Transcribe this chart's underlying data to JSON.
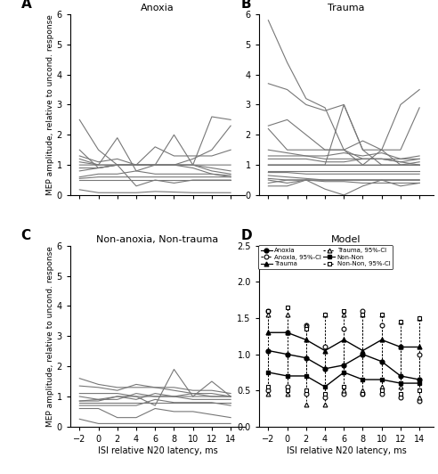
{
  "x": [
    -2,
    0,
    2,
    4,
    6,
    8,
    10,
    12,
    14
  ],
  "anoxia_curves": [
    [
      2.5,
      1.5,
      1.0,
      1.0,
      1.0,
      1.0,
      1.2,
      1.5,
      2.3
    ],
    [
      1.2,
      1.0,
      1.9,
      0.8,
      1.0,
      1.0,
      1.0,
      1.0,
      1.0
    ],
    [
      1.1,
      1.0,
      1.0,
      1.0,
      1.0,
      2.0,
      1.0,
      2.6,
      2.5
    ],
    [
      1.3,
      1.1,
      1.2,
      1.0,
      1.6,
      1.3,
      1.3,
      1.3,
      1.5
    ],
    [
      1.0,
      1.0,
      1.0,
      1.0,
      1.0,
      1.0,
      1.0,
      0.9,
      0.8
    ],
    [
      0.9,
      0.9,
      1.0,
      1.0,
      1.0,
      1.0,
      1.0,
      0.8,
      0.7
    ],
    [
      0.8,
      0.9,
      1.0,
      1.0,
      1.0,
      1.0,
      0.9,
      0.7,
      0.6
    ],
    [
      0.6,
      0.7,
      0.7,
      0.8,
      0.7,
      0.7,
      0.7,
      0.7,
      0.65
    ],
    [
      0.55,
      0.6,
      0.6,
      0.6,
      0.6,
      0.6,
      0.6,
      0.6,
      0.6
    ],
    [
      0.5,
      0.5,
      0.5,
      0.5,
      0.5,
      0.5,
      0.5,
      0.5,
      0.5
    ],
    [
      1.5,
      0.9,
      1.0,
      0.3,
      0.5,
      0.4,
      0.5,
      0.5,
      0.5
    ],
    [
      0.18,
      0.08,
      0.08,
      0.08,
      0.12,
      0.1,
      0.08,
      0.08,
      0.08
    ]
  ],
  "trauma_curves": [
    [
      5.8,
      4.4,
      3.2,
      2.9,
      1.5,
      1.0,
      1.0,
      1.0,
      1.1
    ],
    [
      3.7,
      3.5,
      3.0,
      2.8,
      3.0,
      1.5,
      1.5,
      1.0,
      1.0
    ],
    [
      2.3,
      2.5,
      2.0,
      1.5,
      1.5,
      1.2,
      1.2,
      1.2,
      1.2
    ],
    [
      2.2,
      1.5,
      1.5,
      1.5,
      1.5,
      1.8,
      1.5,
      3.0,
      3.5
    ],
    [
      1.5,
      1.4,
      1.3,
      1.2,
      1.2,
      1.2,
      1.2,
      1.1,
      1.0
    ],
    [
      1.3,
      1.3,
      1.3,
      1.3,
      1.4,
      1.3,
      1.4,
      1.2,
      1.3
    ],
    [
      1.2,
      1.2,
      1.2,
      1.1,
      1.1,
      1.2,
      1.2,
      1.1,
      1.2
    ],
    [
      1.0,
      1.0,
      1.0,
      1.0,
      3.0,
      1.5,
      1.0,
      1.0,
      1.0
    ],
    [
      1.0,
      1.0,
      1.0,
      1.0,
      1.0,
      1.0,
      1.5,
      1.5,
      2.9
    ],
    [
      1.0,
      1.0,
      1.0,
      1.0,
      1.0,
      1.0,
      1.0,
      1.0,
      1.0
    ],
    [
      0.8,
      0.8,
      0.8,
      0.8,
      0.8,
      0.8,
      0.8,
      0.8,
      0.8
    ],
    [
      0.75,
      0.75,
      0.7,
      0.7,
      0.7,
      0.7,
      0.7,
      0.7,
      0.7
    ],
    [
      0.65,
      0.6,
      0.55,
      0.5,
      0.5,
      0.5,
      0.5,
      0.5,
      0.5
    ],
    [
      0.55,
      0.5,
      0.5,
      0.45,
      0.45,
      0.4,
      0.4,
      0.4,
      0.4
    ],
    [
      0.5,
      0.4,
      0.5,
      0.2,
      0.0,
      0.3,
      0.5,
      0.3,
      0.4
    ],
    [
      0.4,
      0.5,
      0.5,
      0.5,
      0.5,
      0.5,
      0.5,
      0.5,
      0.5
    ],
    [
      0.3,
      0.3,
      0.5,
      0.5,
      0.5,
      0.5,
      0.5,
      0.5,
      0.5
    ]
  ],
  "non_curves": [
    [
      1.6,
      1.4,
      1.3,
      1.3,
      1.3,
      1.3,
      1.2,
      1.2,
      1.1
    ],
    [
      1.35,
      1.3,
      1.2,
      1.4,
      1.3,
      1.2,
      1.1,
      1.1,
      1.0
    ],
    [
      1.1,
      1.1,
      1.1,
      1.0,
      1.0,
      1.0,
      1.0,
      1.0,
      1.0
    ],
    [
      1.0,
      0.9,
      1.0,
      1.0,
      0.7,
      1.9,
      1.0,
      1.5,
      1.0
    ],
    [
      0.85,
      0.9,
      0.9,
      1.1,
      1.0,
      1.0,
      1.1,
      1.0,
      1.0
    ],
    [
      0.85,
      0.85,
      1.0,
      0.9,
      1.1,
      1.0,
      0.9,
      0.9,
      0.9
    ],
    [
      0.8,
      0.8,
      0.8,
      0.8,
      0.8,
      0.8,
      0.8,
      0.8,
      0.8
    ],
    [
      0.7,
      0.7,
      0.7,
      0.7,
      0.9,
      0.8,
      0.8,
      0.8,
      0.7
    ],
    [
      0.6,
      0.6,
      0.3,
      0.3,
      0.6,
      0.5,
      0.5,
      0.4,
      0.3
    ],
    [
      0.25,
      0.1,
      0.1,
      0.1,
      0.1,
      0.1,
      0.1,
      0.1,
      0.1
    ]
  ],
  "model_anoxia": [
    1.05,
    1.0,
    0.95,
    0.8,
    0.85,
    1.0,
    0.9,
    0.7,
    0.65
  ],
  "model_trauma": [
    1.3,
    1.3,
    1.2,
    1.05,
    1.2,
    1.05,
    1.2,
    1.1,
    1.1
  ],
  "model_non": [
    0.75,
    0.7,
    0.7,
    0.55,
    0.75,
    0.65,
    0.65,
    0.6,
    0.6
  ],
  "ci_anoxia_upper": [
    1.6,
    1.3,
    1.4,
    1.1,
    1.35,
    1.6,
    1.4,
    1.1,
    1.0
  ],
  "ci_anoxia_lower": [
    0.5,
    0.55,
    0.45,
    0.4,
    0.45,
    0.45,
    0.45,
    0.4,
    0.35
  ],
  "ci_trauma_upper": [
    1.55,
    1.55,
    1.4,
    1.55,
    1.55,
    1.55,
    1.55,
    1.45,
    1.5
  ],
  "ci_trauma_lower": [
    0.45,
    0.45,
    0.3,
    0.3,
    0.5,
    0.5,
    0.55,
    0.55,
    0.4
  ],
  "ci_non_upper": [
    1.6,
    1.65,
    1.35,
    1.55,
    1.6,
    1.55,
    1.55,
    1.45,
    1.5
  ],
  "ci_non_lower": [
    0.55,
    0.5,
    0.5,
    0.45,
    0.55,
    0.45,
    0.5,
    0.45,
    0.5
  ],
  "ylim_abc": [
    0,
    6
  ],
  "ylim_d": [
    0,
    2.5
  ],
  "yticks_abc": [
    0,
    1,
    2,
    3,
    4,
    5,
    6
  ],
  "yticks_d": [
    0.0,
    0.5,
    1.0,
    1.5,
    2.0,
    2.5
  ],
  "xticks": [
    -2,
    0,
    2,
    4,
    6,
    8,
    10,
    12,
    14
  ],
  "xlim": [
    -3,
    15.5
  ],
  "title_A": "Anoxia",
  "title_B": "Trauma",
  "title_C": "Non-anoxia, Non-trauma",
  "title_D": "Model",
  "ylabel_left": "MEP amplitude, relative to uncond. response",
  "xlabel": "ISI relative N20 latency, ms",
  "line_color": "#777777",
  "model_color": "#000000",
  "label_A": "A",
  "label_B": "B",
  "label_C": "C",
  "label_D": "D"
}
